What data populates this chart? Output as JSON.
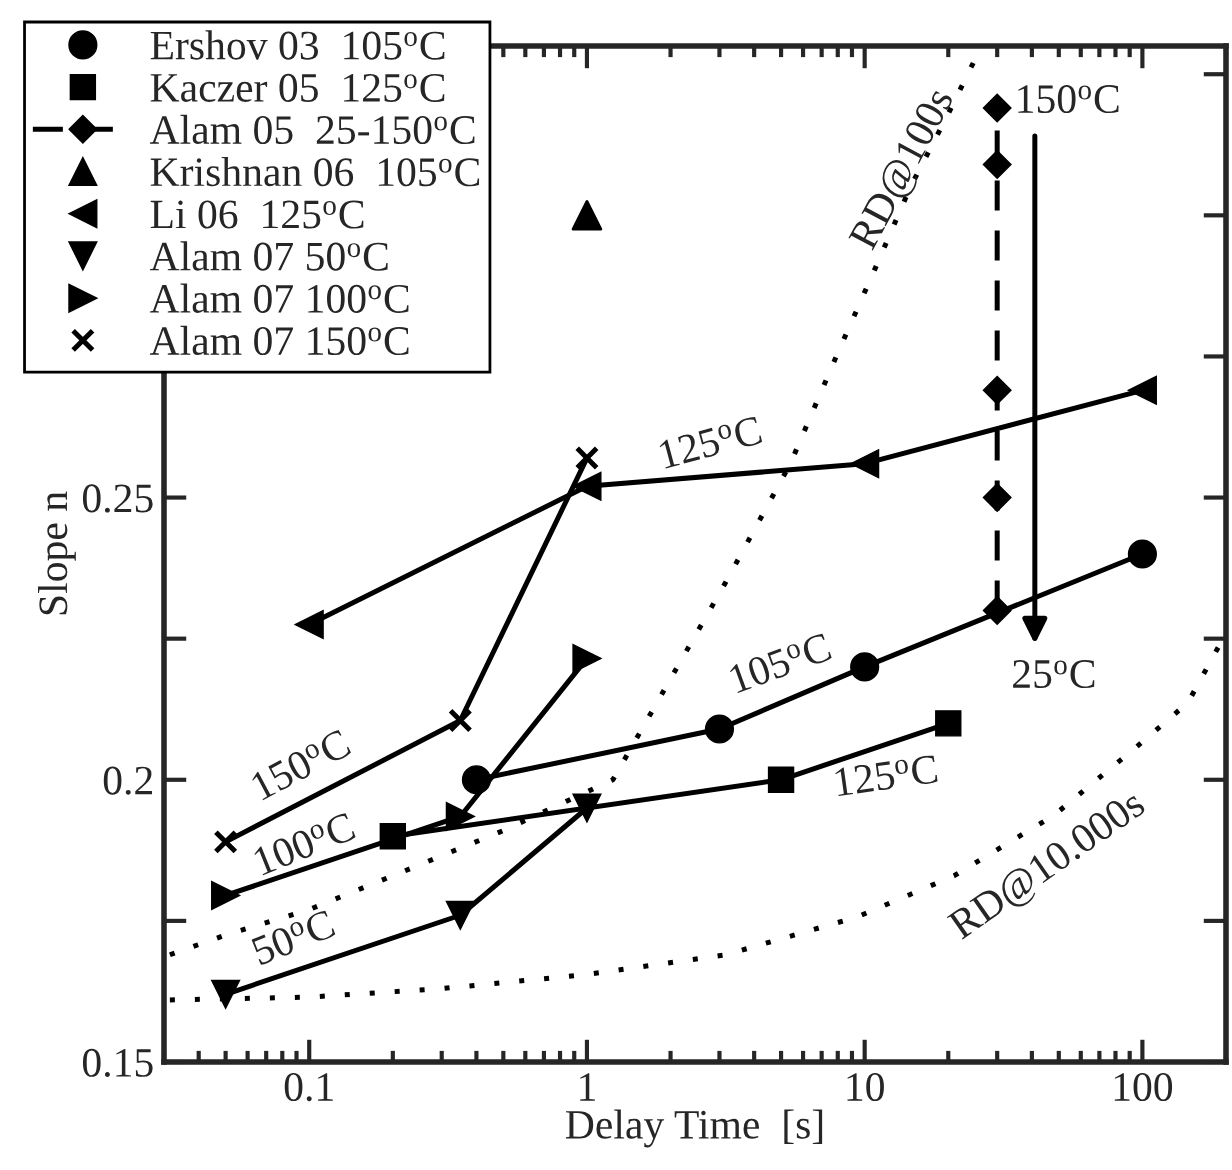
{
  "chart_data": {
    "type": "line",
    "xlabel": "Delay Time  [s]",
    "ylabel": "Slope n",
    "log": "x",
    "xlim": [
      0.03,
      200
    ],
    "xticks": [
      0.1,
      1,
      10,
      100
    ],
    "ylim": [
      0.15,
      0.33
    ],
    "yticks": [
      0.15,
      {
        "value": 0.175,
        "label": null
      },
      0.2,
      {
        "value": 0.225,
        "label": null
      },
      0.25,
      {
        "value": 0.275,
        "label": null
      },
      {
        "value": 0.3,
        "label": null
      },
      {
        "value": 0.325,
        "label": null
      }
    ],
    "grid": false,
    "legend": "top left",
    "series": [
      {
        "name": "Ershov 03  105$^{o}$C",
        "marker": "circle",
        "line_style": "solid",
        "color": "#000000",
        "x": [
          0.4,
          3,
          10,
          100
        ],
        "values": [
          0.2,
          0.209,
          0.22,
          0.24
        ]
      },
      {
        "name": "Kaczer 05  125$^{o}$C",
        "type": "line",
        "marker": "square",
        "line_style": "solid",
        "color": "#000000",
        "x": [
          0.2,
          5,
          20
        ],
        "values": [
          0.19,
          0.2,
          0.21
        ]
      },
      {
        "name": "Alam 05  25-150$^{o}$C",
        "type": "line",
        "marker": "diamond",
        "line_style": "dashed",
        "color": "#000000",
        "x": [
          30,
          30,
          30,
          30,
          30
        ],
        "values": [
          0.23,
          0.25,
          0.269,
          0.309,
          0.319
        ]
      },
      {
        "name": "Krishnan 06  105$^{o}$C",
        "type": "scatter",
        "marker": "triangle",
        "color": "#000000",
        "x": [
          1
        ],
        "values": [
          0.3
        ]
      },
      {
        "name": "Li 06  125$^{o}$C",
        "type": "line",
        "marker": "triangle-left",
        "line_style": "solid",
        "color": "#000000",
        "x": [
          0.1,
          1,
          10,
          100
        ],
        "values": [
          0.2275,
          0.252,
          0.256,
          0.269
        ]
      },
      {
        "name": "Alam 07 50$^{o}$C",
        "type": "line",
        "marker": "triangle-down",
        "line_style": "solid",
        "color": "#000000",
        "x": [
          0.05,
          0.35,
          1
        ],
        "values": [
          0.162,
          0.176,
          0.195
        ]
      },
      {
        "name": "Alam 07 100$^{o}$C",
        "type": "line",
        "marker": "triangle-right",
        "line_style": "solid",
        "color": "#000000",
        "x": [
          0.05,
          0.35,
          1
        ],
        "values": [
          0.1795,
          0.1935,
          0.2215
        ]
      },
      {
        "name": "Alam 07 150$^{o}$C",
        "type": "line",
        "marker": "cross",
        "line_style": "solid",
        "color": "#000000",
        "x": [
          0.05,
          0.35,
          1
        ],
        "values": [
          0.189,
          0.2105,
          0.257
        ]
      },
      {
        "type": "line",
        "marker": "none",
        "line_style": "dotted",
        "color": "#000000",
        "x": [
          0.0315,
          0.05,
          0.1,
          0.2,
          0.5,
          1.24,
          3.16,
          5.4,
          7.9,
          11,
          14.6,
          20,
          24.6
        ],
        "values": [
          0.169,
          0.1725,
          0.177,
          0.183,
          0.191,
          0.2,
          0.235,
          0.256,
          0.275,
          0.291,
          0.305,
          0.318,
          0.327
        ]
      },
      {
        "type": "line",
        "marker": "none",
        "line_style": "dotted",
        "color": "#000000",
        "x": [
          0.0315,
          0.1,
          0.3,
          1,
          3.16,
          9.4,
          21,
          48,
          100,
          146,
          190
        ],
        "values": [
          0.161,
          0.1615,
          0.163,
          0.1655,
          0.169,
          0.1757,
          0.183,
          0.1937,
          0.2067,
          0.2137,
          0.224
        ]
      }
    ],
    "annotations": [
      "125$^{o}$C",
      "105$^{o}$C",
      "125$^{o}$C",
      "150$^{o}$C",
      "100$^{o}$C",
      "50$^{o}$C",
      "150$^{o}$C",
      "25$^{o}$C",
      "RD@100s",
      "RD@10.000s"
    ]
  }
}
